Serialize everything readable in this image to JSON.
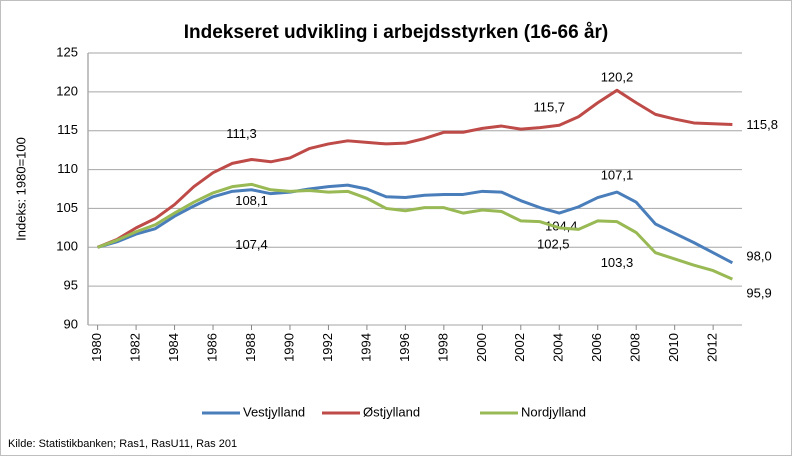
{
  "chart_data": {
    "type": "line",
    "title": "Indekseret udvikling i arbejdsstyrken (16-66 år)",
    "y_label": "Indeks: 1980=100",
    "source": "Kilde: Statistikbanken; Ras1, RasU11, Ras 201",
    "x": [
      1980,
      1981,
      1982,
      1983,
      1984,
      1985,
      1986,
      1987,
      1988,
      1989,
      1990,
      1991,
      1992,
      1993,
      1994,
      1995,
      1996,
      1997,
      1998,
      1999,
      2000,
      2001,
      2002,
      2003,
      2004,
      2005,
      2006,
      2007,
      2008,
      2009,
      2010,
      2011,
      2012,
      2013
    ],
    "xlim": [
      1979.5,
      2013.5
    ],
    "xticks": [
      1980,
      1982,
      1984,
      1986,
      1988,
      1990,
      1992,
      1994,
      1996,
      1998,
      2000,
      2002,
      2004,
      2006,
      2008,
      2010,
      2012
    ],
    "ylim": [
      90,
      125
    ],
    "yticks": [
      90,
      95,
      100,
      105,
      110,
      115,
      120,
      125
    ],
    "grid": true,
    "legend": "bottom",
    "series": [
      {
        "name": "Vestjylland",
        "color": "#4a7ebb",
        "values": [
          100,
          100.7,
          101.7,
          102.4,
          104.0,
          105.3,
          106.5,
          107.2,
          107.4,
          106.9,
          107.1,
          107.5,
          107.8,
          108.0,
          107.5,
          106.5,
          106.4,
          106.7,
          106.8,
          106.8,
          107.2,
          107.1,
          106.0,
          105.1,
          104.4,
          105.2,
          106.4,
          107.1,
          105.8,
          103.0,
          101.8,
          100.6,
          99.3,
          98.0
        ],
        "value_labels": [
          null,
          null,
          null,
          null,
          null,
          null,
          null,
          null,
          "107,4",
          null,
          null,
          null,
          null,
          null,
          null,
          null,
          null,
          null,
          null,
          null,
          null,
          null,
          null,
          null,
          "104,4",
          null,
          null,
          "107,1",
          null,
          null,
          null,
          null,
          null,
          "98,0"
        ]
      },
      {
        "name": "Østjylland",
        "color": "#be4b48",
        "values": [
          100,
          101.0,
          102.5,
          103.7,
          105.5,
          107.8,
          109.6,
          110.8,
          111.3,
          111.0,
          111.5,
          112.7,
          113.3,
          113.7,
          113.5,
          113.3,
          113.4,
          114.0,
          114.8,
          114.8,
          115.3,
          115.6,
          115.2,
          115.4,
          115.7,
          116.8,
          118.6,
          120.2,
          118.6,
          117.1,
          116.5,
          116.0,
          115.9,
          115.8
        ],
        "value_labels": [
          null,
          null,
          null,
          null,
          null,
          null,
          null,
          null,
          "111,3",
          null,
          null,
          null,
          null,
          null,
          null,
          null,
          null,
          null,
          null,
          null,
          null,
          null,
          null,
          null,
          "115,7",
          null,
          null,
          "120,2",
          null,
          null,
          null,
          null,
          null,
          "115,8"
        ]
      },
      {
        "name": "Nordjylland",
        "color": "#98b954",
        "values": [
          100,
          100.9,
          102.0,
          102.9,
          104.4,
          105.8,
          107.0,
          107.8,
          108.1,
          107.4,
          107.2,
          107.3,
          107.1,
          107.2,
          106.3,
          105.0,
          104.7,
          105.1,
          105.1,
          104.4,
          104.8,
          104.6,
          103.4,
          103.3,
          102.5,
          102.3,
          103.4,
          103.3,
          101.9,
          99.3,
          98.5,
          97.7,
          97.0,
          95.9
        ],
        "value_labels": [
          null,
          null,
          null,
          null,
          null,
          null,
          null,
          null,
          "108,1",
          null,
          null,
          null,
          null,
          null,
          null,
          null,
          null,
          null,
          null,
          null,
          null,
          null,
          null,
          null,
          "102,5",
          null,
          null,
          "103,3",
          null,
          null,
          null,
          null,
          null,
          "95,9"
        ]
      }
    ]
  }
}
